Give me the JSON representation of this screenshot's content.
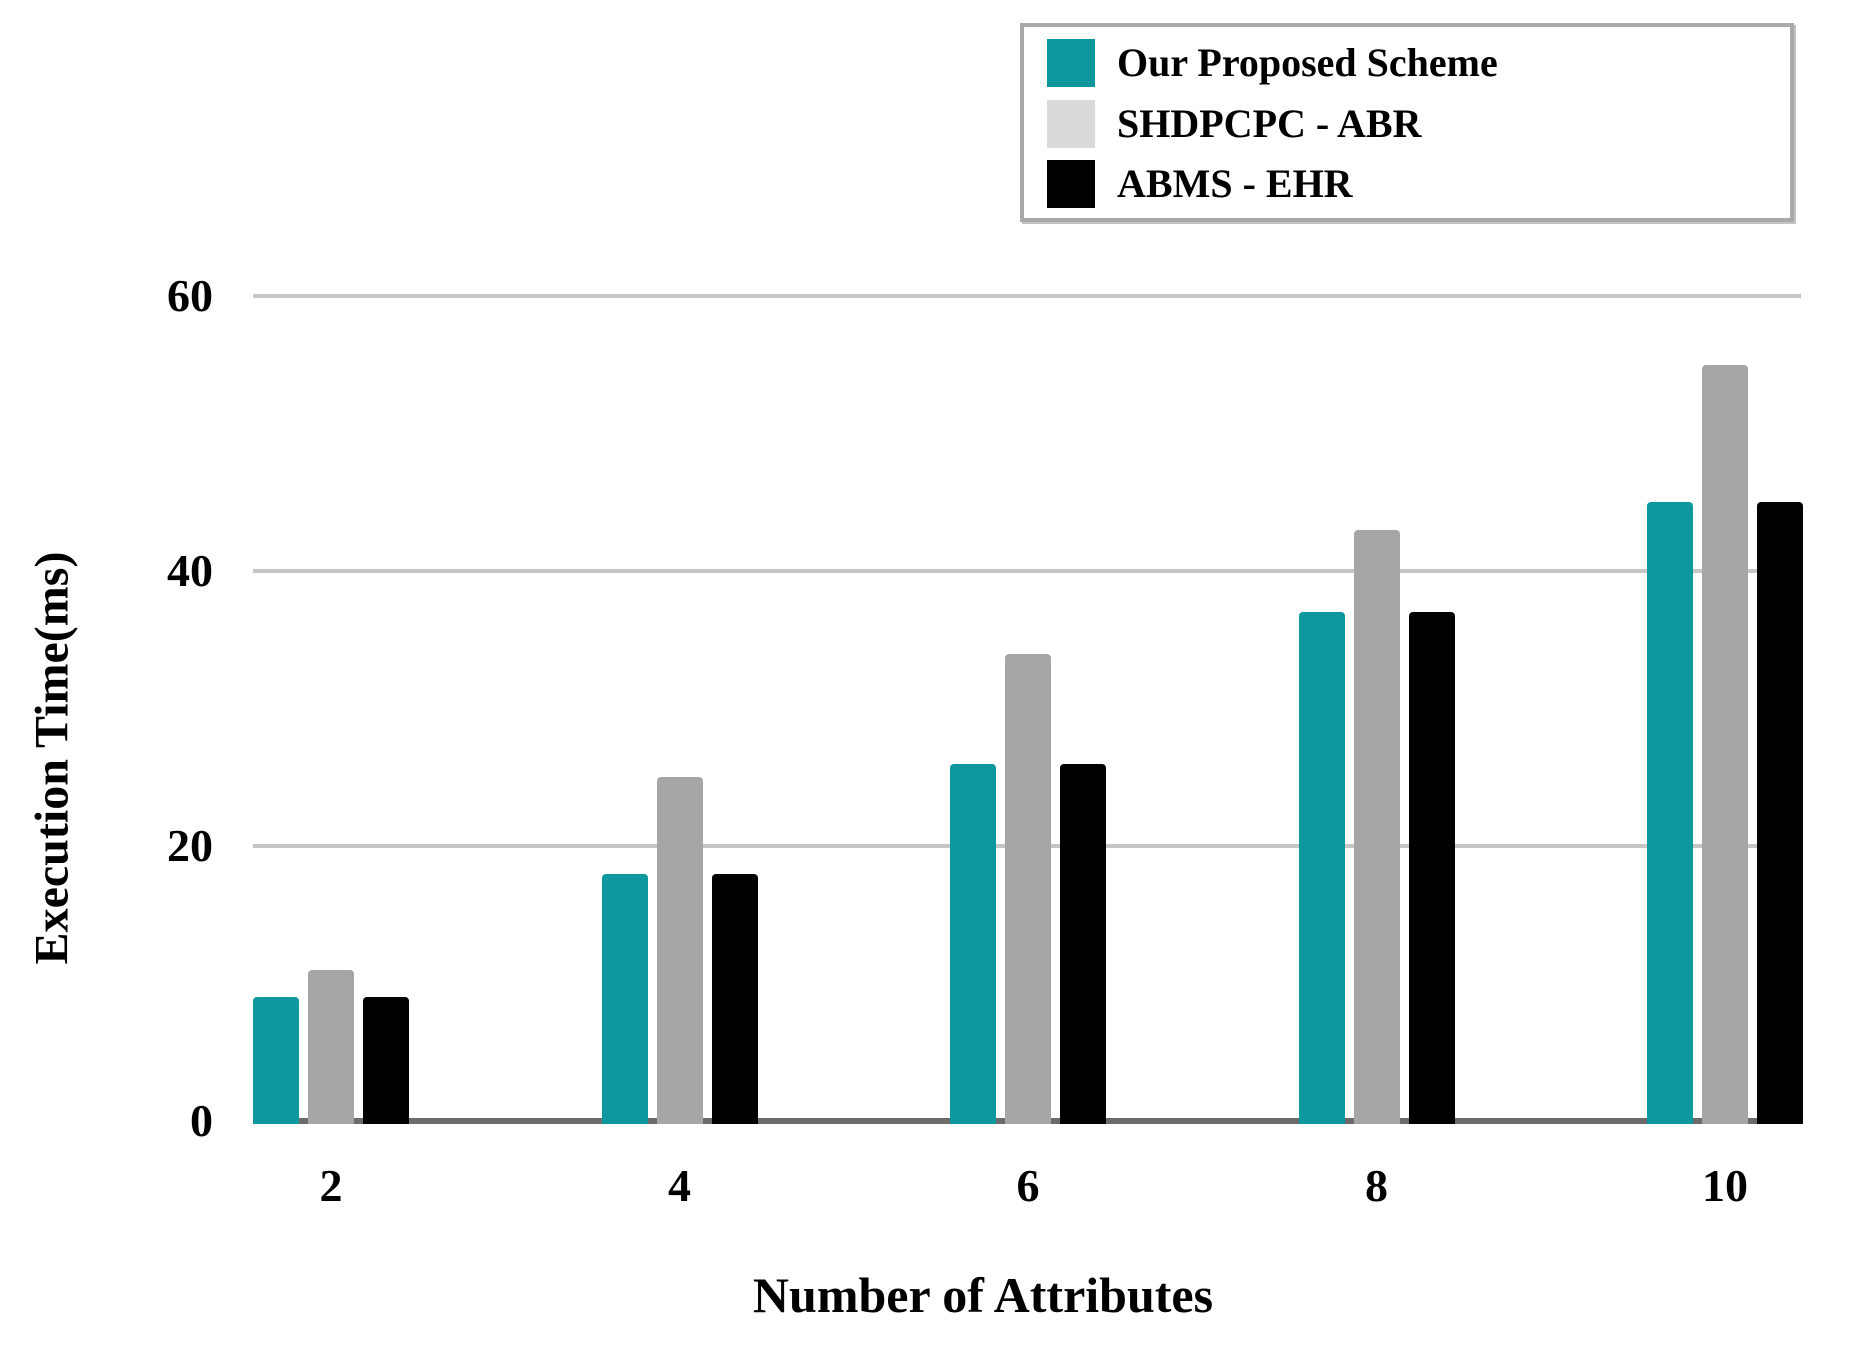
{
  "chart_data": {
    "type": "bar",
    "title": "",
    "xlabel": "Number of Attributes",
    "ylabel": "Execution Time(ms)",
    "categories": [
      "2",
      "4",
      "6",
      "8",
      "10"
    ],
    "series": [
      {
        "name": "Our Proposed Scheme",
        "color": "#0D989D",
        "legend_color": "#0D989D",
        "values": [
          9,
          18,
          26,
          37,
          45
        ]
      },
      {
        "name": "SHDPCPC - ABR",
        "color": "#A6A6A6",
        "legend_color": "#D9D9D9",
        "values": [
          11,
          25,
          34,
          43,
          55
        ]
      },
      {
        "name": "ABMS - EHR",
        "color": "#000000",
        "legend_color": "#000000",
        "values": [
          9,
          18,
          26,
          37,
          45
        ]
      }
    ],
    "y_ticks": [
      0,
      20,
      40,
      60
    ],
    "y_tick_labels": [
      "0",
      "20",
      "40",
      "60"
    ],
    "ylim": [
      0,
      60
    ],
    "grid": true,
    "legend_position": "top-right",
    "colors": {
      "gridline": "#C6C6C6",
      "axis_line": "#6B6B6B",
      "legend_border": "#A9A9A9",
      "background": "#FFFFFF",
      "text": "#000000"
    }
  }
}
